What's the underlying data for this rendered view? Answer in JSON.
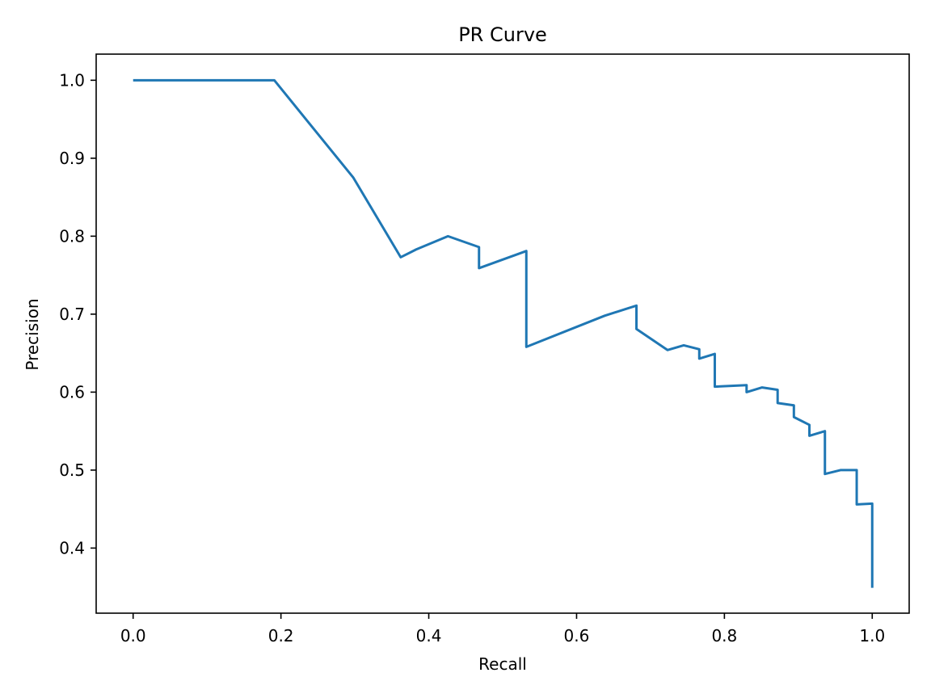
{
  "chart_data": {
    "type": "line",
    "title": "PR Curve",
    "xlabel": "Recall",
    "ylabel": "Precision",
    "xlim": [
      -0.05,
      1.05
    ],
    "ylim": [
      0.3165,
      1.0335
    ],
    "x_ticks": [
      0.0,
      0.2,
      0.4,
      0.6,
      0.8,
      1.0
    ],
    "x_tick_labels": [
      "0.0",
      "0.2",
      "0.4",
      "0.6",
      "0.8",
      "1.0"
    ],
    "y_ticks": [
      0.4,
      0.5,
      0.6,
      0.7,
      0.8,
      0.9,
      1.0
    ],
    "y_tick_labels": [
      "0.4",
      "0.5",
      "0.6",
      "0.7",
      "0.8",
      "0.9",
      "1.0"
    ],
    "grid": false,
    "series": [
      {
        "color": "#1f77b4",
        "x": [
          0.0,
          0.191,
          0.298,
          0.362,
          0.383,
          0.426,
          0.468,
          0.468,
          0.532,
          0.532,
          0.638,
          0.681,
          0.681,
          0.723,
          0.745,
          0.766,
          0.766,
          0.787,
          0.787,
          0.83,
          0.83,
          0.851,
          0.872,
          0.872,
          0.894,
          0.894,
          0.915,
          0.915,
          0.936,
          0.936,
          0.957,
          0.979,
          0.979,
          1.0,
          1.0
        ],
        "y": [
          1.0,
          1.0,
          0.875,
          0.773,
          0.783,
          0.8,
          0.786,
          0.759,
          0.781,
          0.658,
          0.698,
          0.711,
          0.681,
          0.654,
          0.66,
          0.655,
          0.643,
          0.649,
          0.607,
          0.609,
          0.6,
          0.606,
          0.603,
          0.586,
          0.583,
          0.568,
          0.558,
          0.544,
          0.55,
          0.495,
          0.5,
          0.5,
          0.456,
          0.457,
          0.349
        ]
      }
    ]
  }
}
